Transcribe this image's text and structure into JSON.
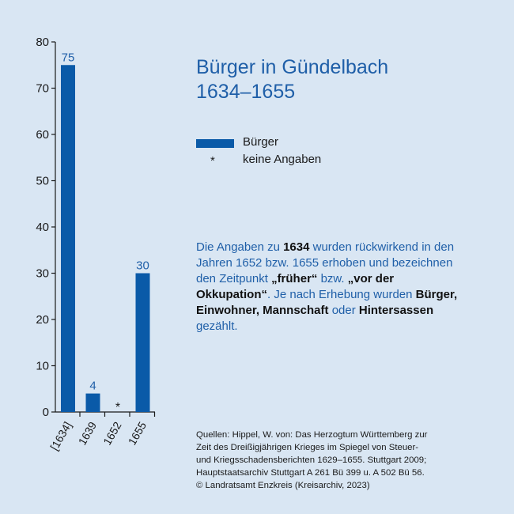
{
  "title": {
    "line1": "Bürger in Gündelbach",
    "line2": "1634–1655"
  },
  "legend": {
    "bar_label": "Bürger",
    "star_symbol": "*",
    "star_label": "keine Angaben"
  },
  "note": {
    "t1": "Die Angaben zu ",
    "b1": "1634",
    "t2": " wurden rückwirkend in den Jahren 1652 bzw. 1655 erhoben und bezeichnen den Zeitpunkt ",
    "b2": "„früher“",
    "t3": " bzw. ",
    "b3": "„vor der Okkupation“",
    "t4": ". Je nach Erhebung wurden ",
    "b4": "Bürger, Einwohner, Mannschaft",
    "t5": " oder ",
    "b5": "Hintersassen",
    "t6": " gezählt."
  },
  "sources": {
    "line1": "Quellen: Hippel, W. von: Das Herzogtum Württemberg zur",
    "line2": "Zeit des Dreißigjährigen Krieges im Spiegel von Steuer-",
    "line3": "und Kriegsschadensberichten 1629–1655. Stuttgart 2009;",
    "line4": "Hauptstaatsarchiv Stuttgart A 261 Bü 399 u. A 502 Bü 56.",
    "line5": "© Landratsamt Enzkreis (Kreisarchiv, 2023)"
  },
  "colors": {
    "background": "#d9e6f3",
    "bar": "#0a5aa8",
    "accent_text": "#1f5fa8"
  },
  "chart_data": {
    "type": "bar",
    "categories": [
      "[1634]",
      "1639",
      "1652",
      "1655"
    ],
    "values": [
      75,
      4,
      null,
      30
    ],
    "value_labels": [
      "75",
      "4",
      "*",
      "30"
    ],
    "ylim": [
      0,
      80
    ],
    "yticks": [
      0,
      10,
      20,
      30,
      40,
      50,
      60,
      70,
      80
    ],
    "grid": false
  }
}
